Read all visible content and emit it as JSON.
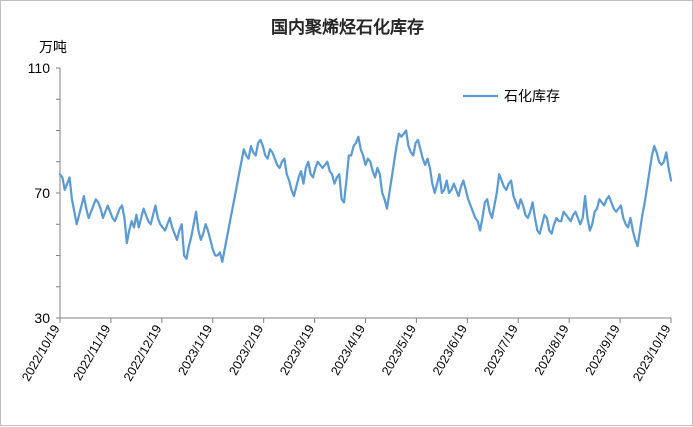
{
  "chart_data": {
    "type": "line",
    "title": "国内聚烯烃石化库存",
    "unit_label": "万吨",
    "ylim": [
      30,
      110
    ],
    "yticks": [
      "110",
      "70",
      "30"
    ],
    "xticks": [
      "2022/10/19",
      "2022/11/19",
      "2022/12/19",
      "2023/1/19",
      "2023/2/19",
      "2023/3/19",
      "2023/4/19",
      "2023/5/19",
      "2023/6/19",
      "2023/7/19",
      "2023/8/19",
      "2023/9/19",
      "2023/10/19"
    ],
    "legend_position": "top-right",
    "grid": false,
    "series": [
      {
        "name": "石化库存",
        "color": "#5b9bd5",
        "values": [
          76,
          75,
          71,
          73,
          75,
          68,
          64,
          60,
          63,
          66,
          69,
          65,
          62,
          64,
          66,
          68,
          67,
          65,
          62,
          64,
          66,
          64,
          62,
          61,
          63,
          65,
          66,
          62,
          54,
          58,
          61,
          59,
          63,
          59,
          62,
          65,
          63,
          61,
          60,
          63,
          66,
          62,
          60,
          59,
          58,
          60,
          62,
          59,
          57,
          55,
          58,
          60,
          50,
          49,
          53,
          56,
          60,
          64,
          58,
          55,
          57,
          60,
          58,
          55,
          52,
          50,
          50,
          51,
          48,
          52,
          56,
          60,
          64,
          68,
          72,
          76,
          80,
          84,
          82,
          81,
          85,
          83,
          82,
          86,
          87,
          85,
          82,
          81,
          84,
          83,
          81,
          79,
          78,
          80,
          81,
          76,
          74,
          71,
          69,
          72,
          75,
          77,
          73,
          78,
          80,
          76,
          75,
          78,
          80,
          79,
          78,
          79,
          80,
          77,
          76,
          73,
          75,
          76,
          68,
          67,
          74,
          82,
          82,
          85,
          86,
          88,
          84,
          82,
          79,
          81,
          80,
          77,
          75,
          78,
          76,
          70,
          68,
          65,
          70,
          75,
          80,
          85,
          89,
          88,
          89,
          90,
          85,
          83,
          82,
          86,
          87,
          84,
          81,
          79,
          81,
          78,
          73,
          70,
          73,
          76,
          70,
          71,
          74,
          70,
          71,
          73,
          71,
          69,
          72,
          74,
          71,
          68,
          66,
          64,
          62,
          61,
          58,
          62,
          67,
          68,
          64,
          62,
          66,
          70,
          76,
          74,
          72,
          71,
          73,
          74,
          69,
          67,
          65,
          68,
          66,
          63,
          62,
          64,
          67,
          62,
          58,
          57,
          60,
          63,
          62,
          58,
          57,
          60,
          62,
          61,
          61,
          64,
          63,
          62,
          61,
          63,
          64,
          62,
          60,
          62,
          69,
          62,
          58,
          60,
          64,
          65,
          68,
          67,
          66,
          68,
          69,
          67,
          65,
          64,
          65,
          66,
          62,
          60,
          59,
          62,
          58,
          55,
          53,
          58,
          63,
          67,
          72,
          77,
          82,
          85,
          83,
          80,
          79,
          80,
          83,
          78,
          74
        ]
      }
    ]
  }
}
